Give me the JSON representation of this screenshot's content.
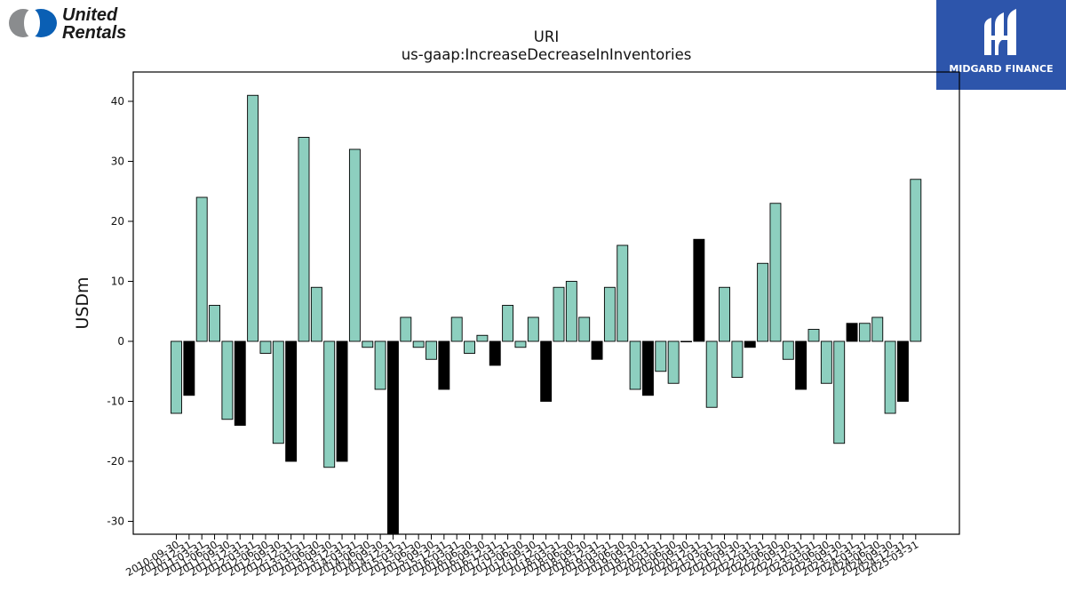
{
  "header": {
    "left_logo": {
      "name": "United Rentals",
      "line1": "United",
      "line2": "Rentals"
    },
    "right_logo": {
      "name": "MIDGARD FINANCE",
      "text": "MIDGARD FINANCE"
    }
  },
  "chart_data": {
    "type": "bar",
    "title": "URI",
    "subtitle": "us-gaap:IncreaseDecreaseInInventories",
    "xlabel": "",
    "ylabel": "USDm",
    "ylim": [
      -32,
      45
    ],
    "yticks": [
      -30,
      -20,
      -10,
      0,
      10,
      20,
      30,
      40
    ],
    "grid": false,
    "legend": "none",
    "colors": {
      "positive_style": "#8dcfbf",
      "highlight": "#000000",
      "edge": "#000000"
    },
    "categories": [
      "2010-09-30",
      "2010-12-31",
      "2011-03-31",
      "2011-06-30",
      "2011-09-30",
      "2011-12-31",
      "2012-03-31",
      "2012-06-30",
      "2012-09-30",
      "2012-12-31",
      "2013-03-31",
      "2013-06-30",
      "2013-09-30",
      "2013-12-31",
      "2014-03-31",
      "2014-06-30",
      "2014-09-30",
      "2014-12-31",
      "2015-03-31",
      "2015-06-30",
      "2015-09-30",
      "2015-12-31",
      "2016-03-31",
      "2016-06-30",
      "2016-09-30",
      "2016-12-31",
      "2017-03-31",
      "2017-06-30",
      "2017-09-30",
      "2017-12-31",
      "2018-03-31",
      "2018-06-30",
      "2018-09-30",
      "2018-12-31",
      "2019-03-31",
      "2019-06-30",
      "2019-09-30",
      "2019-12-31",
      "2020-03-31",
      "2020-06-30",
      "2020-09-30",
      "2020-12-31",
      "2021-03-31",
      "2021-06-30",
      "2021-09-30",
      "2021-12-31",
      "2022-03-31",
      "2022-06-30",
      "2022-09-30",
      "2022-12-31",
      "2023-03-31",
      "2023-06-30",
      "2023-09-30",
      "2023-12-31",
      "2024-03-31",
      "2024-06-30",
      "2024-09-30",
      "2024-12-31",
      "2025-03-31"
    ],
    "values": [
      -12,
      -9,
      24,
      6,
      -13,
      -14,
      41,
      -2,
      -17,
      -20,
      34,
      9,
      -21,
      -20,
      32,
      -1,
      -8,
      -32,
      4,
      -1,
      -3,
      -8,
      4,
      -2,
      1,
      -4,
      6,
      -1,
      4,
      -10,
      9,
      10,
      4,
      -3,
      9,
      16,
      -8,
      -9,
      -5,
      -7,
      0,
      17,
      -11,
      9,
      -6,
      -1,
      13,
      23,
      -3,
      -8,
      2,
      -7,
      -17,
      3,
      3,
      4,
      -12,
      -10,
      27
    ],
    "highlight": [
      false,
      true,
      false,
      false,
      false,
      true,
      false,
      false,
      false,
      true,
      false,
      false,
      false,
      true,
      false,
      false,
      false,
      true,
      false,
      false,
      false,
      true,
      false,
      false,
      false,
      true,
      false,
      false,
      false,
      true,
      false,
      false,
      false,
      true,
      false,
      false,
      false,
      true,
      false,
      false,
      false,
      true,
      false,
      false,
      false,
      true,
      false,
      false,
      false,
      true,
      false,
      false,
      false,
      true,
      false,
      false,
      false,
      true,
      false
    ]
  }
}
